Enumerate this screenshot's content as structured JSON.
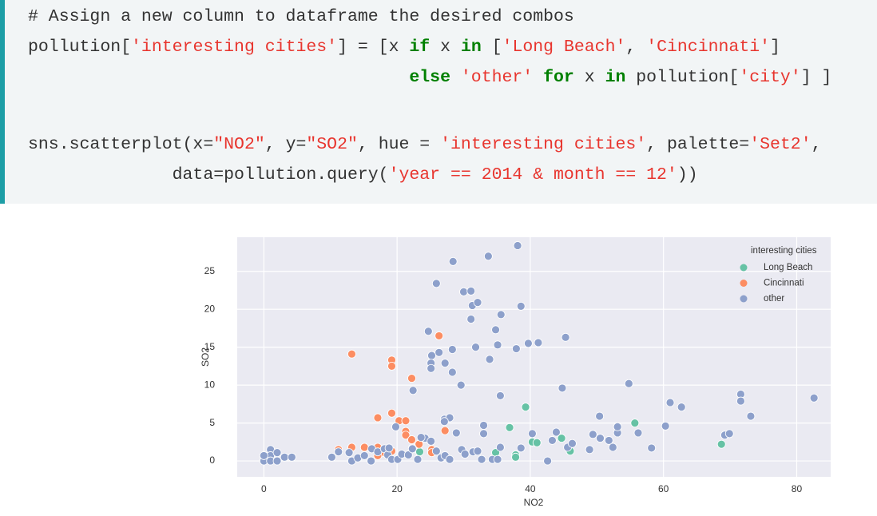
{
  "code": {
    "lines": [
      [
        {
          "text": "# Assign a new column to dataframe the desired combos",
          "color": "#333333"
        }
      ],
      [
        {
          "text": "pollution[",
          "color": "#333333"
        },
        {
          "text": "'interesting cities'",
          "color": "#e8352e"
        },
        {
          "text": "] = [x ",
          "color": "#333333"
        },
        {
          "text": "if",
          "color": "#008000",
          "bold": true
        },
        {
          "text": " x ",
          "color": "#333333"
        },
        {
          "text": "in",
          "color": "#008000",
          "bold": true
        },
        {
          "text": " [",
          "color": "#333333"
        },
        {
          "text": "'Long Beach'",
          "color": "#e8352e"
        },
        {
          "text": ", ",
          "color": "#333333"
        },
        {
          "text": "'Cincinnati'",
          "color": "#e8352e"
        },
        {
          "text": "]",
          "color": "#333333"
        }
      ],
      [
        {
          "text": "else",
          "color": "#008000",
          "bold": true
        },
        {
          "text": " ",
          "color": "#333333"
        },
        {
          "text": "'other'",
          "color": "#e8352e"
        },
        {
          "text": " ",
          "color": "#333333"
        },
        {
          "text": "for",
          "color": "#008000",
          "bold": true
        },
        {
          "text": " x ",
          "color": "#333333"
        },
        {
          "text": "in",
          "color": "#008000",
          "bold": true
        },
        {
          "text": " pollution[",
          "color": "#333333"
        },
        {
          "text": "'city'",
          "color": "#e8352e"
        },
        {
          "text": "] ]",
          "color": "#333333"
        }
      ],
      [],
      [
        {
          "text": "sns.scatterplot(x=",
          "color": "#333333"
        },
        {
          "text": "\"NO2\"",
          "color": "#e8352e"
        },
        {
          "text": ", y=",
          "color": "#333333"
        },
        {
          "text": "\"SO2\"",
          "color": "#e8352e"
        },
        {
          "text": ", hue = ",
          "color": "#333333"
        },
        {
          "text": "'interesting cities'",
          "color": "#e8352e"
        },
        {
          "text": ", palette=",
          "color": "#333333"
        },
        {
          "text": "'Set2'",
          "color": "#e8352e"
        },
        {
          "text": ",",
          "color": "#333333"
        }
      ],
      [
        {
          "text": "data=pollution.query(",
          "color": "#333333"
        },
        {
          "text": "'year == 2014 & month == 12'",
          "color": "#e8352e"
        },
        {
          "text": "))",
          "color": "#333333"
        }
      ]
    ]
  },
  "chart_data": {
    "type": "scatter",
    "x_label": "NO2",
    "y_label": "SO2",
    "legend_title": "interesting cities",
    "legend": "upper right",
    "grid": true,
    "background": "#eaeaf2",
    "xlim": [
      -4,
      85.1
    ],
    "xticks": [
      0,
      20,
      40,
      60,
      80
    ],
    "ylim": [
      -2.1,
      29.5
    ],
    "yticks": [
      0,
      5,
      10,
      15,
      20,
      25
    ],
    "series": [
      {
        "name": "Long Beach",
        "color": "#66c2a5",
        "x": [
          23.4,
          34.8,
          36.9,
          37.8,
          37.8,
          39.3,
          40.3,
          41,
          44.7,
          46,
          55.7,
          68.7
        ],
        "values": [
          1.2,
          1.1,
          4.4,
          0.8,
          0.5,
          7.1,
          2.5,
          2.4,
          3.0,
          1.3,
          5.0,
          2.2
        ]
      },
      {
        "name": "Cincinnati",
        "color": "#fc8d62",
        "x": [
          13.2,
          19.2,
          19.2,
          22.2,
          26.3,
          17.1,
          19.2,
          20.3,
          21.3,
          21.3,
          21.3,
          22.2,
          23.3,
          25.2,
          27.2,
          11.2,
          13.2,
          15.1,
          17.1,
          18.1,
          19.2,
          17.1,
          25.2
        ],
        "values": [
          14.1,
          13.3,
          12.5,
          10.9,
          16.5,
          5.7,
          6.3,
          5.3,
          5.3,
          3.9,
          3.4,
          2.8,
          2.2,
          1.5,
          4.0,
          1.5,
          1.8,
          1.8,
          1.8,
          1.1,
          1.3,
          0.7,
          1.1
        ]
      },
      {
        "name": "other",
        "color": "#8da0cb",
        "x": [
          0,
          0,
          1,
          1,
          1,
          2,
          2,
          3.1,
          4.2,
          0,
          10.2,
          11.2,
          12.8,
          13.2,
          14.1,
          15.1,
          16.1,
          16.2,
          17.1,
          18.1,
          18.6,
          19.2,
          20.1,
          20.7,
          21.7,
          22.3,
          23.1,
          24.2,
          25.1,
          25.9,
          26.6,
          27.2,
          27.9,
          27.1,
          27.9,
          27.1,
          28.9,
          29.7,
          30.2,
          31.4,
          32.1,
          32.7,
          33,
          33,
          34.3,
          35.1,
          35.5,
          38.6,
          40.3,
          42.6,
          43.3,
          43.9,
          45.6,
          46.3,
          48.9,
          49.4,
          50.4,
          50.5,
          51.8,
          52.4,
          53.1,
          53.1,
          56.2,
          58.2,
          60.3,
          61,
          62.7,
          69.2,
          69.9,
          71.6,
          71.6,
          73.1,
          82.6,
          54.8,
          44.8,
          35.5,
          29.6,
          22.4,
          19.8,
          25.2,
          25.1,
          25.1,
          27.2,
          28.3,
          26.3,
          28.3,
          24.7,
          31.8,
          33.9,
          35.1,
          34.8,
          37.9,
          39.7,
          41.2,
          45.3,
          31.1,
          35.6,
          31.3,
          32.1,
          38.6,
          30,
          31.1,
          25.9,
          28.4,
          33.7,
          38.1,
          23.6,
          22.3,
          18.8
        ],
        "values": [
          0.4,
          0,
          1.5,
          0.7,
          0,
          1.1,
          0,
          0.5,
          0.5,
          0.7,
          0.5,
          1.2,
          1.1,
          0,
          0.4,
          0.7,
          0,
          1.6,
          1.2,
          1.6,
          0.8,
          0.2,
          0.2,
          0.9,
          0.8,
          1.7,
          0.2,
          3.0,
          2.6,
          1.3,
          0.4,
          0.7,
          0.2,
          5.5,
          5.7,
          5.2,
          3.7,
          1.5,
          0.9,
          1.2,
          1.3,
          0.2,
          4.7,
          3.6,
          0.2,
          0.2,
          1.8,
          1.7,
          3.6,
          0,
          2.7,
          3.8,
          1.8,
          2.3,
          1.5,
          3.5,
          5.9,
          3.0,
          2.7,
          1.8,
          3.7,
          4.5,
          3.7,
          1.7,
          4.6,
          7.7,
          7.1,
          3.4,
          3.6,
          8.8,
          7.9,
          5.9,
          8.3,
          10.2,
          9.6,
          8.6,
          10.0,
          9.3,
          4.5,
          13.9,
          12.9,
          12.2,
          12.9,
          11.7,
          14.3,
          14.7,
          17.1,
          15,
          13.4,
          15.3,
          17.3,
          14.8,
          15.5,
          15.6,
          16.3,
          18.7,
          19.3,
          20.5,
          20.9,
          20.4,
          22.3,
          22.4,
          23.4,
          26.3,
          27,
          28.4,
          3.1,
          1.6,
          1.7
        ]
      }
    ]
  }
}
